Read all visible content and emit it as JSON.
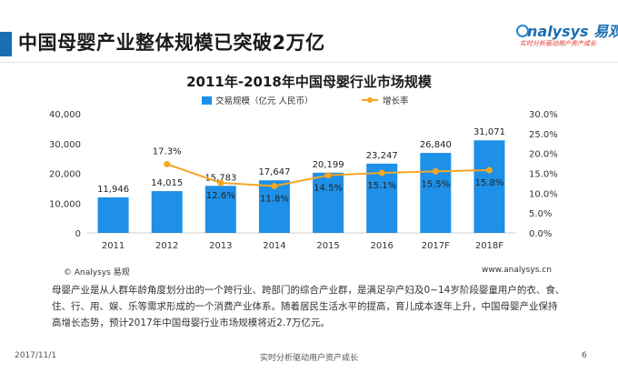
{
  "header": {
    "title": "中国母婴产业整体规模已突破2万亿",
    "logo_text": "nalysys 易观",
    "logo_tagline": "实时分析驱动用户资产成长"
  },
  "chart_data": {
    "type": "bar+line",
    "title": "2011年-2018年中国母婴行业市场规模",
    "categories": [
      "2011",
      "2012",
      "2013",
      "2014",
      "2015",
      "2016",
      "2017F",
      "2018F"
    ],
    "series": [
      {
        "name": "交易规模（亿元 人民币）",
        "type": "bar",
        "axis": "left",
        "color": "#1e90e8",
        "values": [
          11946,
          14015,
          15783,
          17647,
          20199,
          23247,
          26840,
          31071
        ],
        "labels": [
          "11,946",
          "14,015",
          "15,783",
          "17,647",
          "20,199",
          "23,247",
          "26,840",
          "31,071"
        ]
      },
      {
        "name": "增长率",
        "type": "line",
        "axis": "right",
        "color": "#f5a623",
        "values": [
          null,
          17.3,
          12.6,
          11.8,
          14.5,
          15.1,
          15.5,
          15.8
        ],
        "labels": [
          "",
          "17.3%",
          "12.6%",
          "11.8%",
          "14.5%",
          "15.1%",
          "15.5%",
          "15.8%"
        ]
      }
    ],
    "y_left": {
      "min": 0,
      "max": 40000,
      "ticks": [
        "0",
        "10,000",
        "20,000",
        "30,000",
        "40,000"
      ]
    },
    "y_right": {
      "min": 0,
      "max": 30,
      "ticks": [
        "0.0%",
        "5.0%",
        "10.0%",
        "15.0%",
        "20.0%",
        "25.0%",
        "30.0%"
      ]
    },
    "legend_position": "top",
    "grid": false
  },
  "source": {
    "copyright": "© Analysys 易观",
    "url": "www.analysys.cn"
  },
  "description": "母婴产业是从人群年龄角度划分出的一个跨行业、跨部门的综合产业群，是满足孕产妇及0~14岁阶段婴童用户的衣、食、住、行、用、娱、乐等需求形成的一个消费产业体系。随着居民生活水平的提高，育儿成本逐年上升，中国母婴产业保持高增长态势，预计2017年中国母婴行业市场规模将近2.7万亿元。",
  "footer": {
    "date": "2017/11/1",
    "tagline": "实时分析驱动用户资产成长",
    "page": "6"
  }
}
